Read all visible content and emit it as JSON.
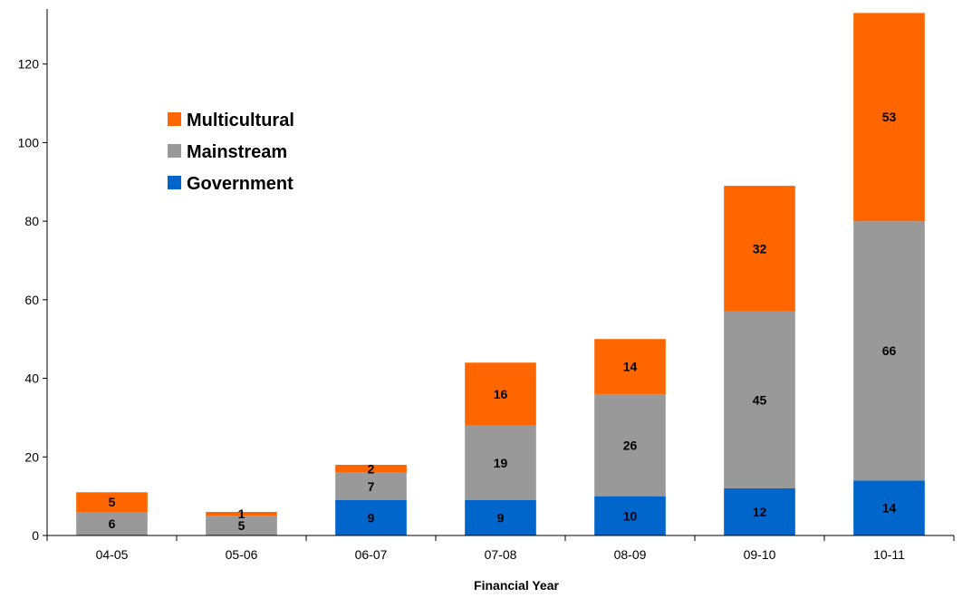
{
  "chart_data": {
    "type": "bar",
    "stacked": true,
    "title": "",
    "xlabel": "Financial Year",
    "ylabel": "",
    "ylim": [
      0,
      134
    ],
    "yticks": [
      0,
      20,
      40,
      60,
      80,
      100,
      120
    ],
    "categories": [
      "04-05",
      "05-06",
      "06-07",
      "07-08",
      "08-09",
      "09-10",
      "10-11"
    ],
    "series": [
      {
        "name": "Government",
        "color": "#0066CC",
        "values": [
          0,
          0,
          9,
          9,
          10,
          12,
          14
        ]
      },
      {
        "name": "Mainstream",
        "color": "#999999",
        "values": [
          6,
          5,
          7,
          19,
          26,
          45,
          66
        ]
      },
      {
        "name": "Multicultural",
        "color": "#FF6600",
        "values": [
          5,
          1,
          2,
          16,
          14,
          32,
          53
        ]
      }
    ],
    "legend": {
      "placement": "top-left",
      "order": [
        "Multicultural",
        "Mainstream",
        "Government"
      ]
    },
    "grid": false
  }
}
